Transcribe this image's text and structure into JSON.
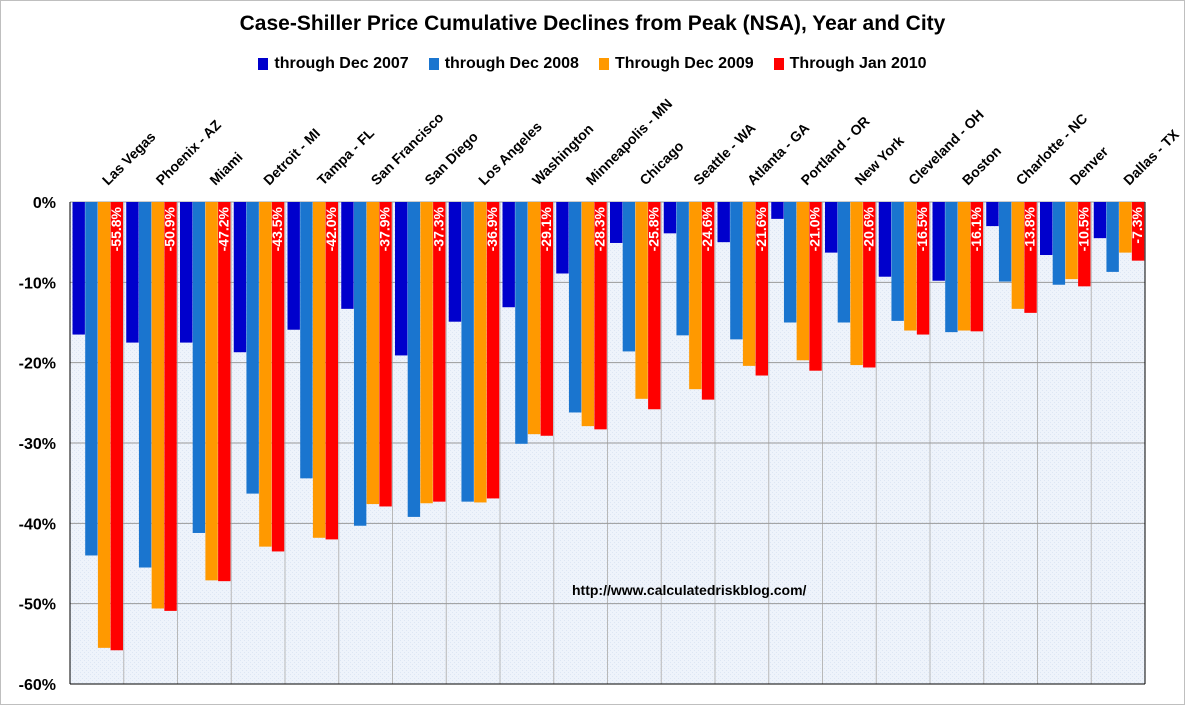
{
  "chart_data": {
    "type": "bar",
    "title": "Case-Shiller Price Cumulative Declines from Peak (NSA),  Year and City",
    "source_note": "http://www.calculatedriskblog.com/",
    "categories": [
      "Las Vegas",
      "Phoenix - AZ",
      "Miami",
      "Detroit - MI",
      "Tampa - FL",
      "San Francisco",
      "San Diego",
      "Los Angeles",
      "Washington",
      "Minneapolis - MN",
      "Chicago",
      "Seattle - WA",
      "Atlanta - GA",
      "Portland - OR",
      "New York",
      "Cleveland - OH",
      "Boston",
      "Charlotte - NC",
      "Denver",
      "Dallas - TX"
    ],
    "series": [
      {
        "name": "through Dec 2007",
        "color": "#0000cc",
        "values": [
          -16.5,
          -17.5,
          -17.5,
          -18.7,
          -15.9,
          -13.3,
          -19.1,
          -14.9,
          -13.1,
          -8.9,
          -5.1,
          -3.9,
          -5.0,
          -2.1,
          -6.3,
          -9.3,
          -9.8,
          -3.0,
          -6.6,
          -4.5
        ]
      },
      {
        "name": "through Dec 2008",
        "color": "#1a75cf",
        "values": [
          -44.0,
          -45.5,
          -41.2,
          -36.3,
          -34.4,
          -40.3,
          -39.2,
          -37.3,
          -30.1,
          -26.2,
          -18.6,
          -16.6,
          -17.1,
          -15.0,
          -15.0,
          -14.8,
          -16.2,
          -9.9,
          -10.3,
          -8.7
        ]
      },
      {
        "name": "Through Dec 2009",
        "color": "#ff9900",
        "values": [
          -55.5,
          -50.6,
          -47.1,
          -42.9,
          -41.8,
          -37.6,
          -37.5,
          -37.4,
          -28.9,
          -27.9,
          -24.5,
          -23.3,
          -20.4,
          -19.7,
          -20.3,
          -16.0,
          -16.0,
          -13.3,
          -9.6,
          -6.3
        ]
      },
      {
        "name": "Through Jan 2010",
        "color": "#ff0000",
        "values": [
          -55.8,
          -50.9,
          -47.2,
          -43.5,
          -42.0,
          -37.9,
          -37.3,
          -36.9,
          -29.1,
          -28.3,
          -25.8,
          -24.6,
          -21.6,
          -21.0,
          -20.6,
          -16.5,
          -16.1,
          -13.8,
          -10.5,
          -7.3
        ]
      }
    ],
    "data_labels": [
      "-55.8%",
      "-50.9%",
      "-47.2%",
      "-43.5%",
      "-42.0%",
      "-37.9%",
      "-37.3%",
      "-36.9%",
      "-29.1%",
      "-28.3%",
      "-25.8%",
      "-24.6%",
      "-21.6%",
      "-21.0%",
      "-20.6%",
      "-16.5%",
      "-16.1%",
      "-13.8%",
      "-10.5%",
      "-7.3%"
    ],
    "yticks": [
      "0%",
      "-10%",
      "-20%",
      "-30%",
      "-40%",
      "-50%",
      "-60%"
    ],
    "ytick_values": [
      0,
      -10,
      -20,
      -30,
      -40,
      -50,
      -60
    ],
    "ylim": [
      -60,
      0
    ],
    "xlabel": "",
    "ylabel": "",
    "grid": true,
    "legend_position": "top"
  }
}
